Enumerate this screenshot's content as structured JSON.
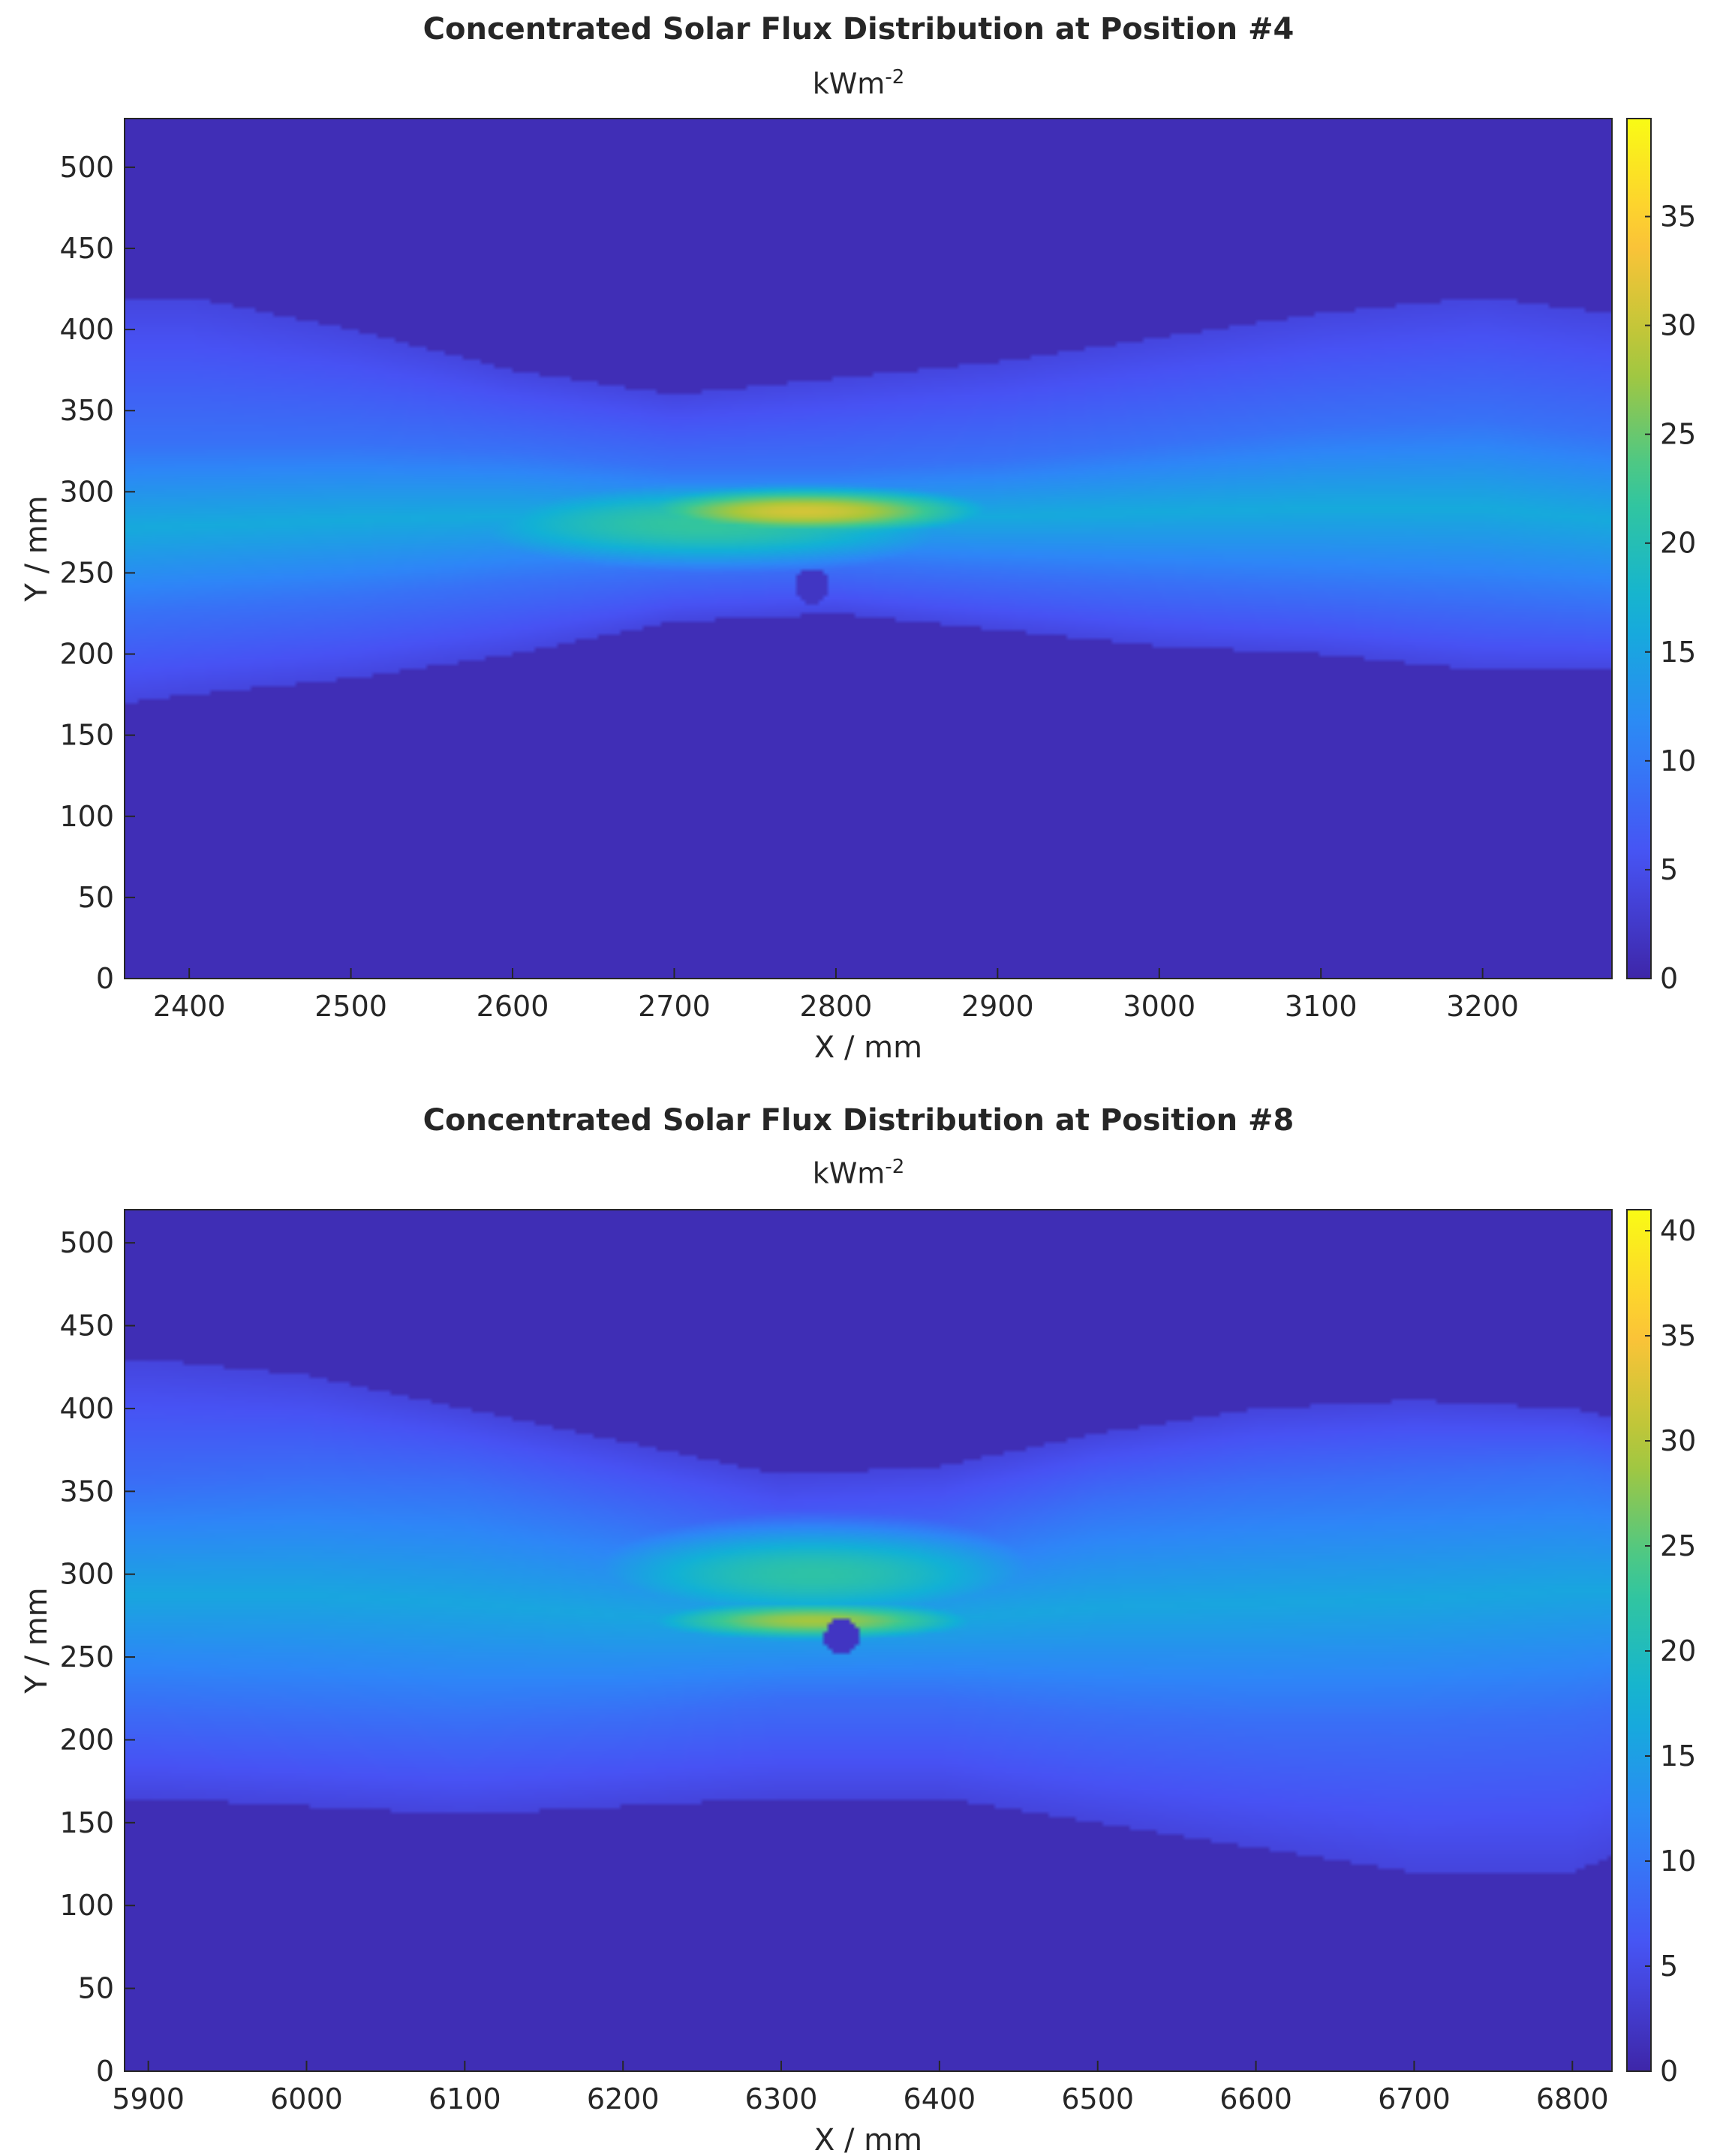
{
  "chart_data": [
    {
      "type": "heatmap",
      "title": "Concentrated Solar Flux Distribution at Position #4",
      "subtitle": "kWm",
      "subtitle_exp": "-2",
      "xlabel": "X / mm",
      "ylabel": "Y / mm",
      "xlim": [
        2360,
        3280
      ],
      "ylim": [
        0,
        530
      ],
      "xticks": [
        2400,
        2500,
        2600,
        2700,
        2800,
        2900,
        3000,
        3100,
        3200
      ],
      "yticks": [
        0,
        50,
        100,
        150,
        200,
        250,
        300,
        350,
        400,
        450,
        500
      ],
      "colorbar": {
        "min": 0,
        "max": 39.5,
        "ticks": [
          0,
          5,
          10,
          15,
          20,
          25,
          30,
          35
        ]
      },
      "colormap": "parula",
      "background_value": 1,
      "band": {
        "x": [
          2360,
          2400,
          2500,
          2600,
          2700,
          2800,
          2900,
          3000,
          3100,
          3200,
          3280
        ],
        "upper": [
          420,
          420,
          400,
          375,
          360,
          370,
          380,
          395,
          410,
          420,
          410
        ],
        "lower": [
          170,
          175,
          185,
          200,
          220,
          225,
          215,
          205,
          200,
          190,
          190
        ],
        "core_upper": [
          330,
          330,
          330,
          325,
          315,
          315,
          320,
          330,
          340,
          345,
          335
        ],
        "core_lower": [
          225,
          228,
          235,
          245,
          252,
          255,
          250,
          245,
          240,
          235,
          230
        ]
      },
      "hotspots": [
        {
          "x": 2780,
          "y": 288,
          "sx": 95,
          "sy": 12,
          "value": 31
        },
        {
          "x": 2720,
          "y": 280,
          "sx": 150,
          "sy": 22,
          "value": 22
        },
        {
          "x": 3100,
          "y": 300,
          "sx": 120,
          "sy": 30,
          "value": 14
        }
      ],
      "spot": {
        "x": 2785,
        "y": 242,
        "r": 11
      }
    },
    {
      "type": "heatmap",
      "title": "Concentrated Solar Flux Distribution at Position #8",
      "subtitle": "kWm",
      "subtitle_exp": "-2",
      "xlabel": "X / mm",
      "ylabel": "Y / mm",
      "xlim": [
        5885,
        6825
      ],
      "ylim": [
        0,
        520
      ],
      "xticks": [
        5900,
        6000,
        6100,
        6200,
        6300,
        6400,
        6500,
        6600,
        6700,
        6800
      ],
      "yticks": [
        0,
        50,
        100,
        150,
        200,
        250,
        300,
        350,
        400,
        450,
        500
      ],
      "colorbar": {
        "min": 0,
        "max": 41,
        "ticks": [
          0,
          5,
          10,
          15,
          20,
          25,
          30,
          35,
          40
        ]
      },
      "colormap": "parula",
      "background_value": 1,
      "band": {
        "x": [
          5885,
          5900,
          6000,
          6100,
          6200,
          6300,
          6400,
          6500,
          6600,
          6700,
          6800,
          6825
        ],
        "upper": [
          430,
          430,
          420,
          400,
          380,
          360,
          365,
          385,
          400,
          405,
          400,
          395
        ],
        "lower": [
          165,
          165,
          160,
          155,
          160,
          165,
          165,
          150,
          135,
          120,
          120,
          130
        ],
        "core_upper": [
          355,
          355,
          360,
          355,
          335,
          315,
          320,
          345,
          355,
          360,
          365,
          360
        ],
        "core_lower": [
          220,
          220,
          215,
          210,
          215,
          225,
          225,
          215,
          210,
          210,
          215,
          220
        ]
      },
      "hotspots": [
        {
          "x": 6320,
          "y": 272,
          "sx": 90,
          "sy": 10,
          "value": 29
        },
        {
          "x": 6320,
          "y": 300,
          "sx": 130,
          "sy": 25,
          "value": 22
        },
        {
          "x": 5950,
          "y": 290,
          "sx": 60,
          "sy": 35,
          "value": 13
        }
      ],
      "spot": {
        "x": 6338,
        "y": 262,
        "r": 11
      }
    }
  ]
}
